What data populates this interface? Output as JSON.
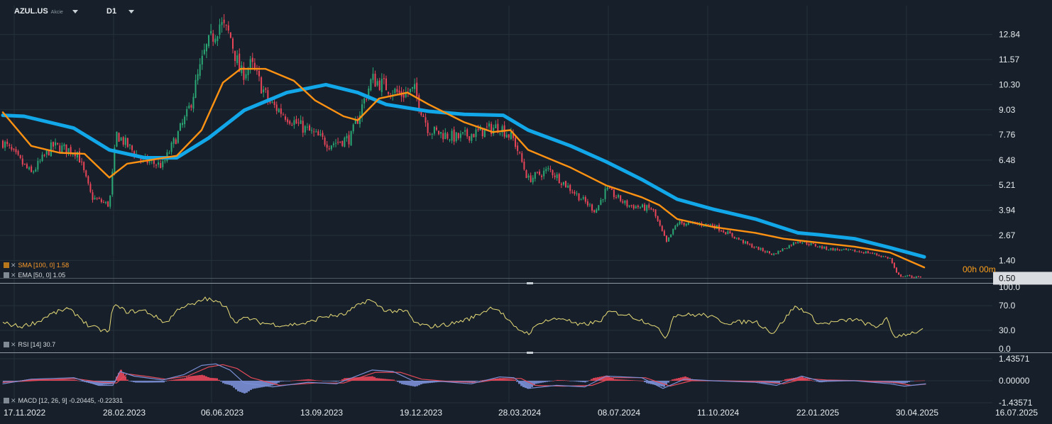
{
  "header": {
    "symbol": "AZUL.US",
    "instrument_type": "Akcie",
    "timeframe": "D1"
  },
  "countdown": "00h 00m",
  "indicators": {
    "sma": "SMA [100,  0]  1.58",
    "ema": "EMA [50, 0]  1.05",
    "rsi": "RSI [14]  30.7",
    "macd": "MACD [12,  26, 9]  -0.20445,  -0.22331"
  },
  "colors": {
    "background": "#17202a",
    "grid": "#24303b",
    "sma": "#12a7e8",
    "ema": "#ff9212",
    "rsi": "#e8dc78",
    "macd": "#7b8fd6",
    "signal": "#e44a5a",
    "bull": "#2aa774",
    "bear": "#e84559",
    "price_tag": "#d9dde1"
  },
  "chart_data": [
    {
      "type": "candlestick",
      "title": "AZUL.US",
      "y_ticks": [
        12.84,
        11.57,
        10.3,
        9.03,
        7.76,
        6.48,
        5.21,
        3.94,
        2.67,
        1.4
      ],
      "ylim": [
        0.3,
        14.3
      ],
      "last_price": "0.50",
      "x_tick_labels": [
        "17.11.2022",
        "28.02.2023",
        "06.06.2023",
        "13.09.2023",
        "19.12.2023",
        "28.03.2024",
        "08.07.2024",
        "11.10.2024",
        "22.01.2025",
        "30.04.2025",
        "16.07.2025"
      ],
      "close_path": [
        [
          0,
          7.4
        ],
        [
          40,
          5.8
        ],
        [
          70,
          7.2
        ],
        [
          105,
          6.9
        ],
        [
          125,
          4.6
        ],
        [
          150,
          4.2
        ],
        [
          160,
          7.8
        ],
        [
          195,
          6.5
        ],
        [
          225,
          6.2
        ],
        [
          260,
          8.8
        ],
        [
          285,
          12.0
        ],
        [
          305,
          13.4
        ],
        [
          320,
          12.8
        ],
        [
          335,
          10.8
        ],
        [
          350,
          11.3
        ],
        [
          375,
          9.4
        ],
        [
          415,
          8.3
        ],
        [
          460,
          7.3
        ],
        [
          490,
          7.6
        ],
        [
          520,
          10.6
        ],
        [
          560,
          9.8
        ],
        [
          580,
          10.0
        ],
        [
          600,
          8.0
        ],
        [
          640,
          7.6
        ],
        [
          680,
          8.0
        ],
        [
          700,
          8.2
        ],
        [
          720,
          7.5
        ],
        [
          740,
          5.5
        ],
        [
          770,
          6.0
        ],
        [
          800,
          5.0
        ],
        [
          835,
          3.9
        ],
        [
          850,
          5.0
        ],
        [
          880,
          4.2
        ],
        [
          915,
          4.0
        ],
        [
          935,
          2.3
        ],
        [
          950,
          3.3
        ],
        [
          1000,
          3.2
        ],
        [
          1050,
          2.2
        ],
        [
          1085,
          1.7
        ],
        [
          1120,
          2.4
        ],
        [
          1160,
          2.0
        ],
        [
          1220,
          1.8
        ],
        [
          1250,
          1.5
        ],
        [
          1260,
          0.65
        ],
        [
          1300,
          0.5
        ]
      ],
      "series": [
        {
          "name": "SMA [100, 0]",
          "line": [
            [
              0,
              8.75
            ],
            [
              30,
              8.7
            ],
            [
              100,
              8.1
            ],
            [
              150,
              7.0
            ],
            [
              200,
              6.6
            ],
            [
              245,
              6.6
            ],
            [
              290,
              7.6
            ],
            [
              340,
              9.0
            ],
            [
              400,
              9.9
            ],
            [
              455,
              10.3
            ],
            [
              500,
              9.9
            ],
            [
              540,
              9.3
            ],
            [
              600,
              8.95
            ],
            [
              650,
              8.8
            ],
            [
              705,
              8.75
            ],
            [
              740,
              8.0
            ],
            [
              800,
              7.2
            ],
            [
              850,
              6.4
            ],
            [
              900,
              5.5
            ],
            [
              950,
              4.5
            ],
            [
              1000,
              4.0
            ],
            [
              1060,
              3.5
            ],
            [
              1120,
              2.8
            ],
            [
              1150,
              2.7
            ],
            [
              1200,
              2.5
            ],
            [
              1250,
              2.05
            ],
            [
              1298,
              1.58
            ]
          ]
        },
        {
          "name": "EMA [50, 0]",
          "line": [
            [
              0,
              8.9
            ],
            [
              40,
              7.2
            ],
            [
              80,
              6.85
            ],
            [
              115,
              6.8
            ],
            [
              150,
              5.6
            ],
            [
              175,
              6.3
            ],
            [
              210,
              6.5
            ],
            [
              245,
              6.7
            ],
            [
              280,
              8.0
            ],
            [
              310,
              10.4
            ],
            [
              335,
              11.1
            ],
            [
              370,
              11.1
            ],
            [
              410,
              10.5
            ],
            [
              440,
              9.5
            ],
            [
              480,
              8.7
            ],
            [
              500,
              8.5
            ],
            [
              530,
              9.6
            ],
            [
              570,
              9.9
            ],
            [
              600,
              9.3
            ],
            [
              650,
              8.4
            ],
            [
              690,
              7.9
            ],
            [
              715,
              8.0
            ],
            [
              740,
              7.0
            ],
            [
              800,
              6.1
            ],
            [
              850,
              5.2
            ],
            [
              900,
              4.6
            ],
            [
              925,
              4.2
            ],
            [
              950,
              3.5
            ],
            [
              1000,
              3.1
            ],
            [
              1060,
              2.8
            ],
            [
              1100,
              2.5
            ],
            [
              1150,
              2.3
            ],
            [
              1200,
              2.1
            ],
            [
              1250,
              1.8
            ],
            [
              1298,
              1.05
            ]
          ]
        }
      ]
    },
    {
      "type": "line",
      "title": "RSI [14]",
      "y_ticks": [
        100.0,
        70.0,
        30.0,
        0.0
      ],
      "ylim": [
        0,
        100
      ],
      "series": [
        {
          "name": "RSI [14]",
          "values": [
            [
              0,
              42
            ],
            [
              25,
              36
            ],
            [
              50,
              44
            ],
            [
              65,
              55
            ],
            [
              90,
              65
            ],
            [
              105,
              55
            ],
            [
              120,
              38
            ],
            [
              140,
              30
            ],
            [
              150,
              28
            ],
            [
              155,
              72
            ],
            [
              175,
              60
            ],
            [
              200,
              62
            ],
            [
              230,
              42
            ],
            [
              250,
              68
            ],
            [
              270,
              72
            ],
            [
              285,
              82
            ],
            [
              300,
              76
            ],
            [
              315,
              70
            ],
            [
              325,
              44
            ],
            [
              345,
              50
            ],
            [
              365,
              42
            ],
            [
              395,
              38
            ],
            [
              430,
              42
            ],
            [
              450,
              52
            ],
            [
              480,
              55
            ],
            [
              500,
              70
            ],
            [
              515,
              80
            ],
            [
              540,
              62
            ],
            [
              570,
              60
            ],
            [
              580,
              42
            ],
            [
              600,
              36
            ],
            [
              630,
              40
            ],
            [
              660,
              50
            ],
            [
              690,
              68
            ],
            [
              700,
              62
            ],
            [
              720,
              35
            ],
            [
              740,
              25
            ],
            [
              760,
              45
            ],
            [
              790,
              50
            ],
            [
              810,
              38
            ],
            [
              840,
              44
            ],
            [
              855,
              60
            ],
            [
              880,
              55
            ],
            [
              915,
              40
            ],
            [
              935,
              18
            ],
            [
              945,
              55
            ],
            [
              990,
              55
            ],
            [
              1020,
              42
            ],
            [
              1060,
              45
            ],
            [
              1085,
              25
            ],
            [
              1115,
              68
            ],
            [
              1130,
              62
            ],
            [
              1150,
              40
            ],
            [
              1200,
              48
            ],
            [
              1230,
              35
            ],
            [
              1245,
              48
            ],
            [
              1255,
              20
            ],
            [
              1300,
              30.7
            ]
          ]
        }
      ]
    },
    {
      "type": "bar+line",
      "title": "MACD [12, 26, 9]",
      "y_ticks": [
        1.43571,
        0.0,
        -1.43571
      ],
      "ylim": [
        -1.43571,
        1.43571
      ],
      "series": [
        {
          "name": "MACD",
          "values": [
            [
              0,
              -0.2
            ],
            [
              40,
              0.1
            ],
            [
              100,
              0.2
            ],
            [
              135,
              -0.3
            ],
            [
              155,
              -0.3
            ],
            [
              165,
              0.6
            ],
            [
              185,
              0.3
            ],
            [
              225,
              0.05
            ],
            [
              255,
              0.4
            ],
            [
              280,
              1.0
            ],
            [
              300,
              1.1
            ],
            [
              320,
              0.7
            ],
            [
              340,
              -0.15
            ],
            [
              380,
              -0.4
            ],
            [
              430,
              -0.1
            ],
            [
              470,
              -0.2
            ],
            [
              520,
              0.7
            ],
            [
              550,
              0.6
            ],
            [
              580,
              -0.05
            ],
            [
              620,
              -0.05
            ],
            [
              660,
              -0.2
            ],
            [
              700,
              0.25
            ],
            [
              720,
              0.2
            ],
            [
              740,
              -0.5
            ],
            [
              780,
              -0.3
            ],
            [
              820,
              -0.4
            ],
            [
              850,
              0.3
            ],
            [
              900,
              0.2
            ],
            [
              930,
              -0.5
            ],
            [
              960,
              0.1
            ],
            [
              1000,
              0.0
            ],
            [
              1060,
              -0.1
            ],
            [
              1090,
              -0.3
            ],
            [
              1125,
              0.3
            ],
            [
              1150,
              0.0
            ],
            [
              1200,
              0.0
            ],
            [
              1250,
              -0.2
            ],
            [
              1270,
              -0.35
            ],
            [
              1300,
              -0.20445
            ]
          ]
        },
        {
          "name": "Signal",
          "values": [
            [
              0,
              -0.1
            ],
            [
              40,
              0.0
            ],
            [
              100,
              0.15
            ],
            [
              140,
              -0.1
            ],
            [
              160,
              -0.15
            ],
            [
              175,
              0.45
            ],
            [
              200,
              0.3
            ],
            [
              230,
              0.1
            ],
            [
              260,
              0.3
            ],
            [
              290,
              0.9
            ],
            [
              310,
              1.05
            ],
            [
              330,
              0.8
            ],
            [
              350,
              0.2
            ],
            [
              390,
              -0.3
            ],
            [
              440,
              -0.15
            ],
            [
              480,
              -0.15
            ],
            [
              525,
              0.55
            ],
            [
              560,
              0.55
            ],
            [
              590,
              0.1
            ],
            [
              630,
              -0.05
            ],
            [
              670,
              -0.1
            ],
            [
              705,
              0.15
            ],
            [
              730,
              0.15
            ],
            [
              750,
              -0.3
            ],
            [
              790,
              -0.35
            ],
            [
              830,
              -0.3
            ],
            [
              860,
              0.2
            ],
            [
              905,
              0.2
            ],
            [
              940,
              -0.35
            ],
            [
              970,
              0.0
            ],
            [
              1010,
              0.0
            ],
            [
              1070,
              -0.05
            ],
            [
              1100,
              -0.2
            ],
            [
              1130,
              0.15
            ],
            [
              1160,
              0.05
            ],
            [
              1210,
              0.0
            ],
            [
              1255,
              -0.1
            ],
            [
              1280,
              -0.3
            ],
            [
              1300,
              -0.22331
            ]
          ]
        }
      ]
    }
  ]
}
